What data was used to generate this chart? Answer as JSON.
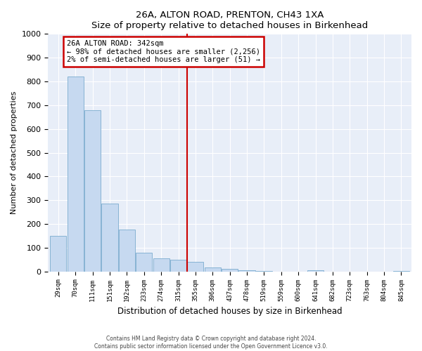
{
  "title": "26A, ALTON ROAD, PRENTON, CH43 1XA",
  "subtitle": "Size of property relative to detached houses in Birkenhead",
  "xlabel": "Distribution of detached houses by size in Birkenhead",
  "ylabel": "Number of detached properties",
  "bar_labels": [
    "29sqm",
    "70sqm",
    "111sqm",
    "151sqm",
    "192sqm",
    "233sqm",
    "274sqm",
    "315sqm",
    "355sqm",
    "396sqm",
    "437sqm",
    "478sqm",
    "519sqm",
    "559sqm",
    "600sqm",
    "641sqm",
    "682sqm",
    "723sqm",
    "763sqm",
    "804sqm",
    "845sqm"
  ],
  "bar_values": [
    150,
    820,
    680,
    285,
    175,
    80,
    55,
    48,
    40,
    18,
    12,
    5,
    2,
    0,
    0,
    5,
    0,
    0,
    0,
    0,
    3
  ],
  "bar_color": "#c6d9f0",
  "bar_edge_color": "#7aacce",
  "vline_color": "#cc0000",
  "annotation_title": "26A ALTON ROAD: 342sqm",
  "annotation_line1": "← 98% of detached houses are smaller (2,256)",
  "annotation_line2": "2% of semi-detached houses are larger (51) →",
  "annotation_box_color": "#cc0000",
  "ylim": [
    0,
    1000
  ],
  "yticks": [
    0,
    100,
    200,
    300,
    400,
    500,
    600,
    700,
    800,
    900,
    1000
  ],
  "footer_line1": "Contains HM Land Registry data © Crown copyright and database right 2024.",
  "footer_line2": "Contains public sector information licensed under the Open Government Licence v3.0.",
  "bg_color": "#ffffff",
  "plot_bg_color": "#e8eef8",
  "grid_color": "#ffffff"
}
